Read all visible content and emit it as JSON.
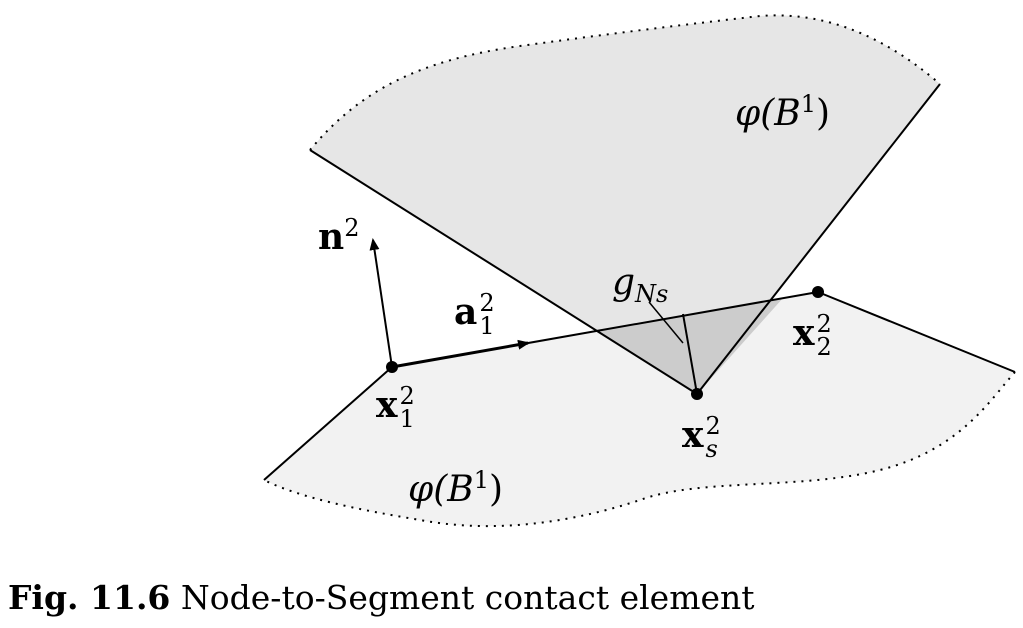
{
  "labels": {
    "body_upper": {
      "prefix": "φ(",
      "base": "B",
      "sup": "1",
      "suffix": ")"
    },
    "body_lower": {
      "prefix": "φ(",
      "base": "B",
      "sup": "1",
      "suffix": ")"
    },
    "normal": {
      "base": "n",
      "sup": "2"
    },
    "tangent": {
      "base": "a",
      "sup": "2",
      "sub": "1"
    },
    "gap": {
      "base": "g",
      "sub": "Ns"
    },
    "node_x1": {
      "base": "x",
      "sup": "2",
      "sub": "1"
    },
    "node_x2": {
      "base": "x",
      "sup": "2",
      "sub": "2"
    },
    "node_xs": {
      "base": "x",
      "sup": "2",
      "sub": "s"
    }
  },
  "caption": {
    "number": "Fig. 11.6",
    "text": "Node-to-Segment contact element"
  },
  "colors": {
    "upper_body_fill": "#e6e6e6",
    "lower_body_fill": "#f2f2f2",
    "overlap_fill": "#cccccc",
    "line": "#000000"
  }
}
